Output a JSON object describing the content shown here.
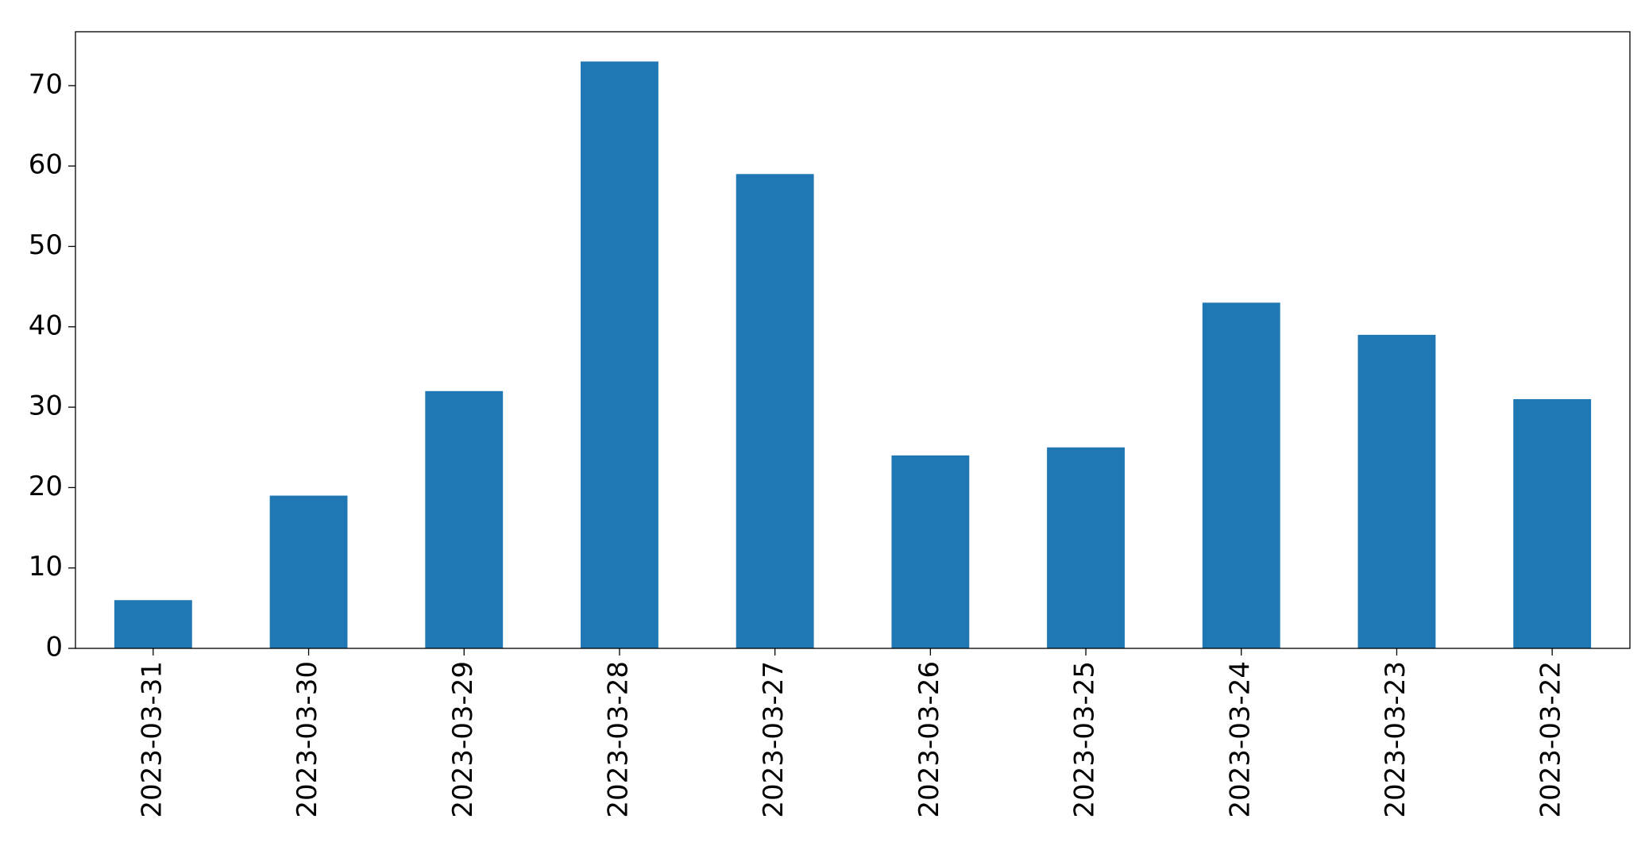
{
  "chart_data": {
    "type": "bar",
    "categories": [
      "2023-03-31",
      "2023-03-30",
      "2023-03-29",
      "2023-03-28",
      "2023-03-27",
      "2023-03-26",
      "2023-03-25",
      "2023-03-24",
      "2023-03-23",
      "2023-03-22"
    ],
    "values": [
      6,
      19,
      32,
      73,
      59,
      24,
      25,
      43,
      39,
      31
    ],
    "color": "#1f77b4",
    "ylim": [
      0,
      76.7
    ],
    "yticks": [
      0,
      10,
      20,
      30,
      40,
      50,
      60,
      70
    ],
    "grid": false
  }
}
